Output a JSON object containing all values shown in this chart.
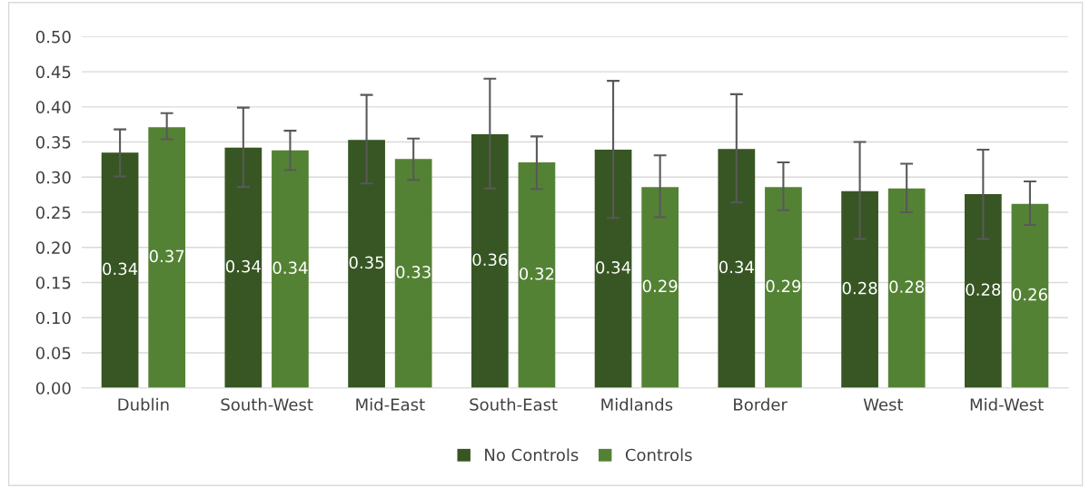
{
  "chart_data": {
    "type": "bar",
    "categories": [
      "Dublin",
      "South-West",
      "Mid-East",
      "South-East",
      "Midlands",
      "Border",
      "West",
      "Mid-West"
    ],
    "series": [
      {
        "name": "No Controls",
        "color": "#375623",
        "values": [
          0.335,
          0.342,
          0.353,
          0.361,
          0.339,
          0.34,
          0.28,
          0.276
        ],
        "errors": [
          [
            0.301,
            0.368
          ],
          [
            0.286,
            0.399
          ],
          [
            0.291,
            0.417
          ],
          [
            0.284,
            0.44
          ],
          [
            0.242,
            0.437
          ],
          [
            0.264,
            0.418
          ],
          [
            0.212,
            0.35
          ],
          [
            0.212,
            0.339
          ]
        ],
        "value_labels": [
          "0.34",
          "0.34",
          "0.35",
          "0.36",
          "0.34",
          "0.34",
          "0.28",
          "0.28"
        ]
      },
      {
        "name": "Controls",
        "color": "#548235",
        "values": [
          0.371,
          0.338,
          0.326,
          0.321,
          0.286,
          0.286,
          0.284,
          0.262
        ],
        "errors": [
          [
            0.354,
            0.391
          ],
          [
            0.31,
            0.366
          ],
          [
            0.296,
            0.355
          ],
          [
            0.283,
            0.358
          ],
          [
            0.243,
            0.331
          ],
          [
            0.253,
            0.321
          ],
          [
            0.25,
            0.319
          ],
          [
            0.232,
            0.294
          ]
        ],
        "value_labels": [
          "0.37",
          "0.34",
          "0.33",
          "0.32",
          "0.29",
          "0.29",
          "0.28",
          "0.26"
        ]
      }
    ],
    "ylim": [
      0,
      0.5
    ],
    "yticks": [
      {
        "value": 0,
        "label": "0.00"
      },
      {
        "value": 0.05,
        "label": "0.05"
      },
      {
        "value": 0.1,
        "label": "0.10"
      },
      {
        "value": 0.15,
        "label": "0.15"
      },
      {
        "value": 0.2,
        "label": "0.20"
      },
      {
        "value": 0.25,
        "label": "0.25"
      },
      {
        "value": 0.3,
        "label": "0.30"
      },
      {
        "value": 0.35,
        "label": "0.35"
      },
      {
        "value": 0.4,
        "label": "0.40"
      },
      {
        "value": 0.45,
        "label": "0.45"
      },
      {
        "value": 0.5,
        "label": "0.50"
      }
    ],
    "grid": "y",
    "legend": "bottom"
  }
}
